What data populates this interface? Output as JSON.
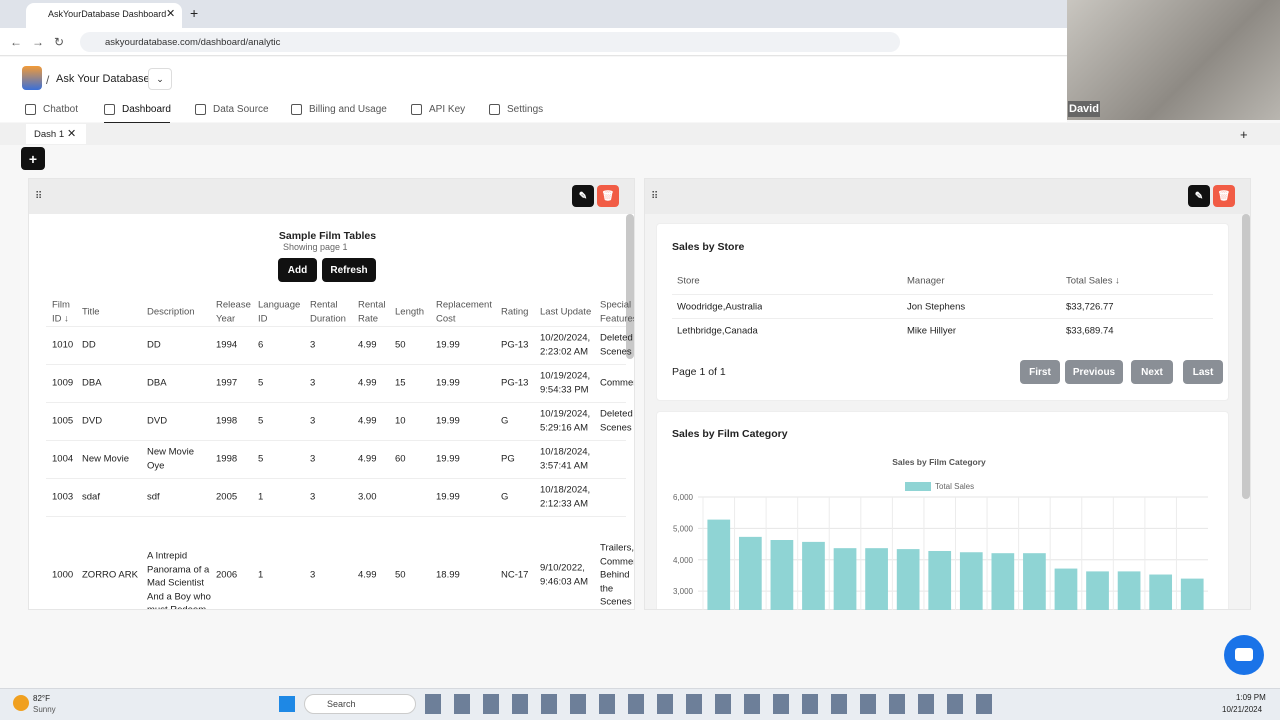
{
  "browser": {
    "tab_title": "AskYourDatabase Dashboard",
    "url": "askyourdatabase.com/dashboard/analytic",
    "webcam_name": "David"
  },
  "app": {
    "brand": "Ask Your Database",
    "nav": [
      "Chatbot",
      "Dashboard",
      "Data Source",
      "Billing and Usage",
      "API Key",
      "Settings"
    ],
    "dash_tab": "Dash 1"
  },
  "film_panel": {
    "title": "Sample Film Tables",
    "subtitle": "Showing page 1",
    "buttons": [
      "Add",
      "Refresh"
    ],
    "columns": [
      "Film ID ↓",
      "Title",
      "Description",
      "Release Year",
      "Language ID",
      "Rental Duration",
      "Rental Rate",
      "Length",
      "Replacement Cost",
      "Rating",
      "Last Update",
      "Special Features"
    ],
    "rows": [
      [
        "1010",
        "DD",
        "DD",
        "1994",
        "6",
        "3",
        "4.99",
        "50",
        "19.99",
        "PG-13",
        "10/20/2024, 2:23:02 AM",
        "Deleted Scenes"
      ],
      [
        "1009",
        "DBA",
        "DBA",
        "1997",
        "5",
        "3",
        "4.99",
        "15",
        "19.99",
        "PG-13",
        "10/19/2024, 9:54:33 PM",
        "Commentaries"
      ],
      [
        "1005",
        "DVD",
        "DVD",
        "1998",
        "5",
        "3",
        "4.99",
        "10",
        "19.99",
        "G",
        "10/19/2024, 5:29:16 AM",
        "Deleted Scenes"
      ],
      [
        "1004",
        "New Movie",
        "New Movie Oye",
        "1998",
        "5",
        "3",
        "4.99",
        "60",
        "19.99",
        "PG",
        "10/18/2024, 3:57:41 AM",
        null
      ],
      [
        "1003",
        "sdaf",
        "sdf",
        "2005",
        "1",
        "3",
        "3.00",
        null,
        "19.99",
        "G",
        "10/18/2024, 2:12:33 AM",
        null
      ],
      [
        "1000",
        "ZORRO ARK",
        "A Intrepid Panorama of a Mad Scientist And a Boy who must Redeem a Boy in A Monastery",
        "2006",
        "1",
        "3",
        "4.99",
        "50",
        "18.99",
        "NC-17",
        "9/10/2022, 9:46:03 AM",
        "Trailers, Commentaries, Behind the Scenes"
      ]
    ]
  },
  "store_panel": {
    "title": "Sales by Store",
    "columns": [
      "Store",
      "Manager",
      "Total Sales ↓"
    ],
    "rows": [
      [
        "Woodridge,Australia",
        "Jon Stephens",
        "$33,726.77"
      ],
      [
        "Lethbridge,Canada",
        "Mike Hillyer",
        "$33,689.74"
      ]
    ],
    "page_info": "Page 1 of 1",
    "buttons": [
      "First",
      "Previous",
      "Next",
      "Last"
    ]
  },
  "category_panel": {
    "title": "Sales by Film Category"
  },
  "chart_data": {
    "type": "bar",
    "title": "Sales by Film Category",
    "legend": "top",
    "categories": [
      null,
      null,
      null,
      null,
      null,
      null,
      null,
      null,
      null,
      null,
      null,
      null,
      null,
      null,
      null,
      null
    ],
    "series": [
      {
        "name": "Total Sales",
        "color": "#8fd4d4",
        "values": [
          5280,
          4730,
          4630,
          4570,
          4370,
          4370,
          4340,
          4280,
          4240,
          4210,
          4210,
          3720,
          3630,
          3630,
          3530,
          3400
        ]
      }
    ],
    "ylim": [
      2400,
      6000
    ],
    "yticks": [
      {
        "value": 3000,
        "label": "3,000"
      },
      {
        "value": 4000,
        "label": "4,000"
      },
      {
        "value": 5000,
        "label": "5,000"
      },
      {
        "value": 6000,
        "label": "6,000"
      }
    ],
    "grid": true
  },
  "taskbar": {
    "temperature": "82°F",
    "weather": "Sunny",
    "search": "Search",
    "time": "1:09 PM",
    "date": "10/21/2024"
  }
}
